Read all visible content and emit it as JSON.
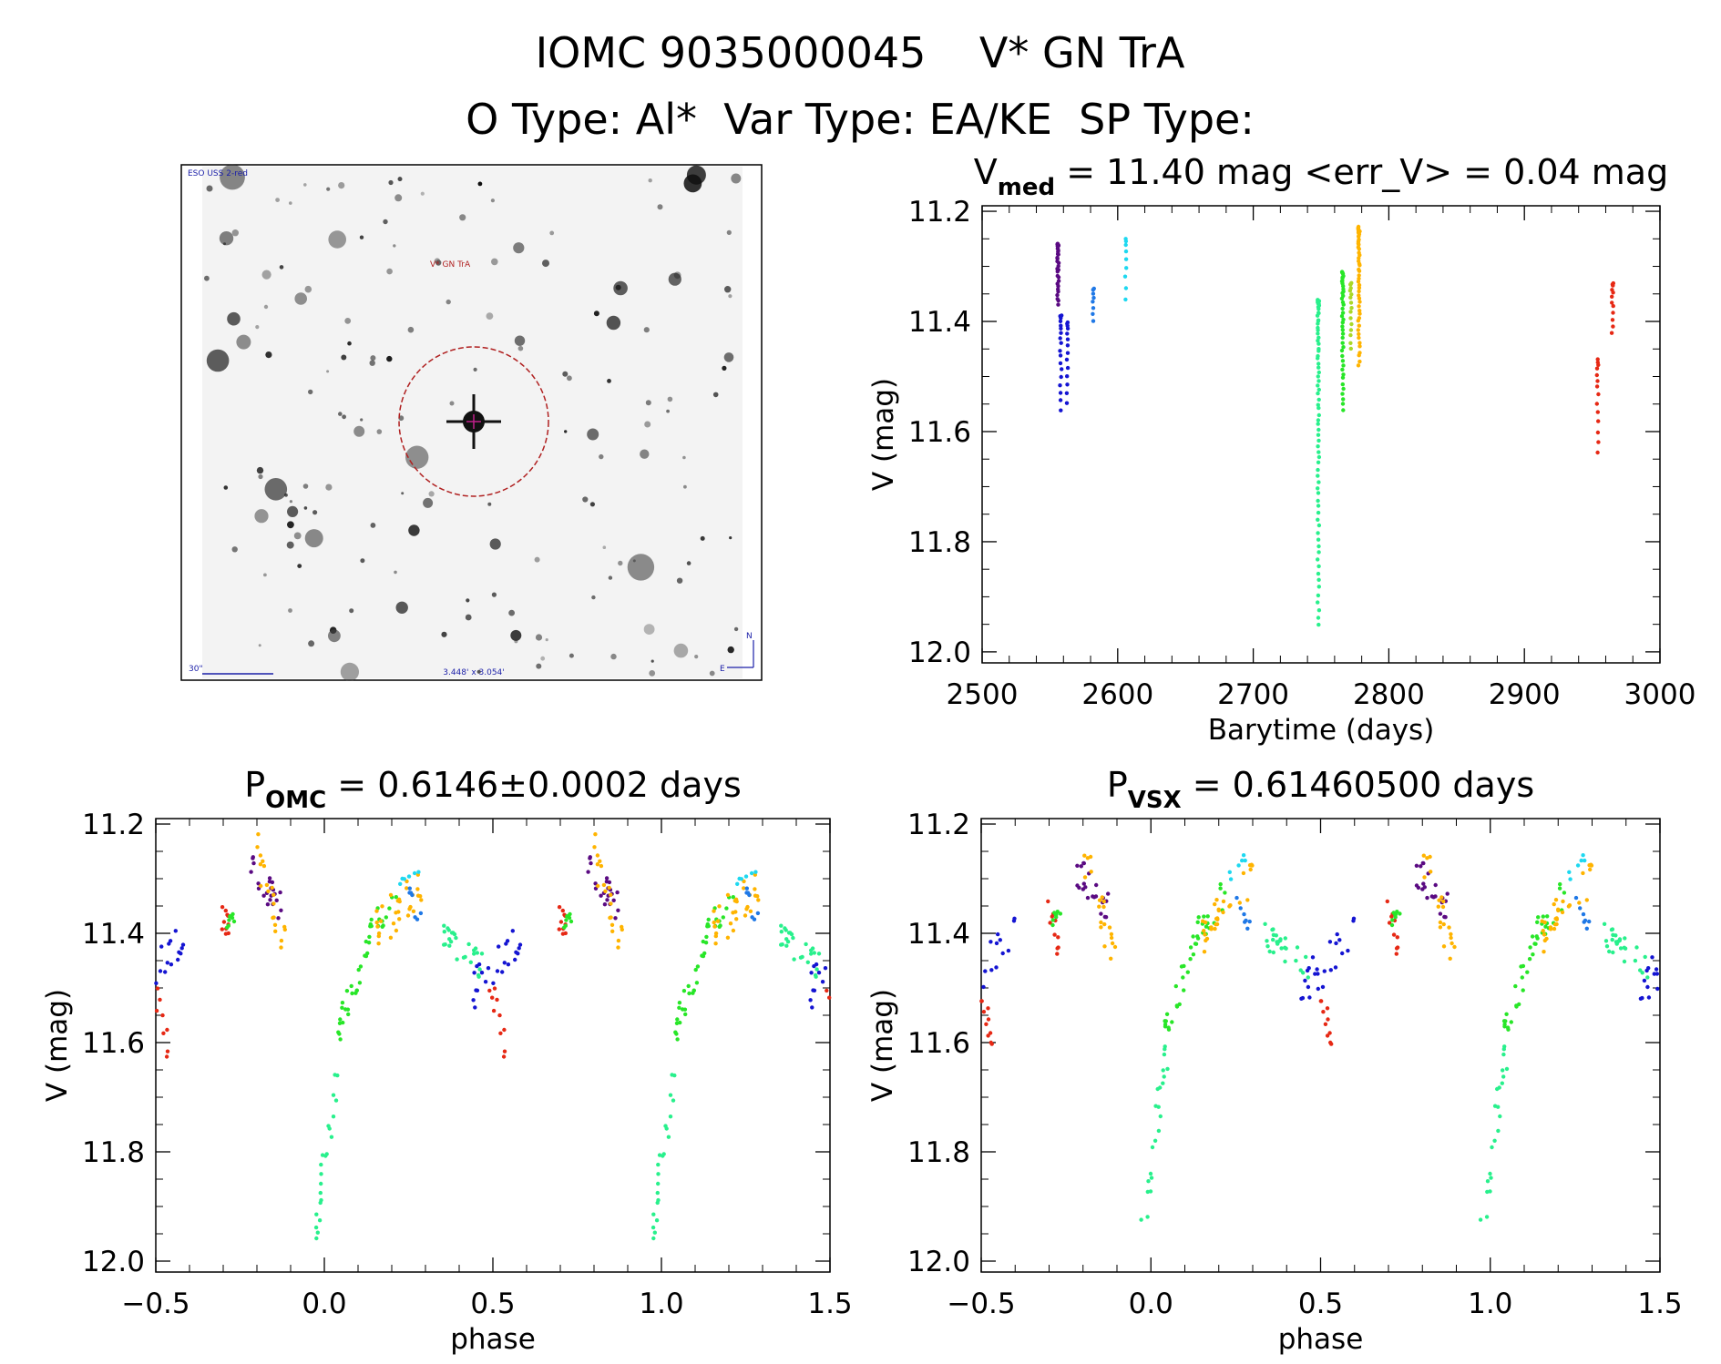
{
  "header": {
    "title": "IOMC 9035000045    V* GN TrA",
    "subtitle": "O Type: Al*  Var Type: EA/KE  SP Type:"
  },
  "finder": {
    "survey_label": "ESO USS 2-red",
    "object_label": "V* GN TrA",
    "scale_label": "30\"",
    "fov_label": "3.448' x 3.054'",
    "north_label": "N",
    "east_label": "E"
  },
  "colors": {
    "violet": "#5a0a82",
    "blue": "#1414d2",
    "azure": "#1f78e6",
    "cyan": "#1ed8f0",
    "spring": "#28f08c",
    "green": "#28e628",
    "lime": "#aad828",
    "orange": "#ffb400",
    "red": "#e62814"
  },
  "chart_data": [
    {
      "id": "lightcurve",
      "type": "scatter",
      "title_prefix": "V",
      "title_sub": "med",
      "title_rest": " = 11.40 mag <err_V> = 0.04 mag",
      "xlabel": "Barytime (days)",
      "ylabel": "V (mag)",
      "xlim": [
        2500,
        3000
      ],
      "ylim": [
        12.02,
        11.19
      ],
      "xticks": [
        2500,
        2600,
        2700,
        2800,
        2900,
        3000
      ],
      "xtick_labels": [
        "2500",
        "2600",
        "2700",
        "2800",
        "2900",
        "3000"
      ],
      "yticks": [
        11.2,
        11.4,
        11.6,
        11.8,
        12.0
      ],
      "ytick_labels": [
        "11.2",
        "11.4",
        "11.6",
        "11.8",
        "12.0"
      ],
      "groups": [
        {
          "color": "violet",
          "x": 2556,
          "ymin": 11.26,
          "ymax": 11.37,
          "n": 30
        },
        {
          "color": "blue",
          "x": 2558,
          "ymin": 11.39,
          "ymax": 11.56,
          "n": 18
        },
        {
          "color": "blue",
          "x": 2563,
          "ymin": 11.4,
          "ymax": 11.55,
          "n": 14
        },
        {
          "color": "azure",
          "x": 2582,
          "ymin": 11.34,
          "ymax": 11.4,
          "n": 8
        },
        {
          "color": "cyan",
          "x": 2606,
          "ymin": 11.25,
          "ymax": 11.36,
          "n": 9
        },
        {
          "color": "spring",
          "x": 2748,
          "ymin": 11.36,
          "ymax": 11.95,
          "n": 70
        },
        {
          "color": "green",
          "x": 2766,
          "ymin": 11.31,
          "ymax": 11.56,
          "n": 42
        },
        {
          "color": "lime",
          "x": 2772,
          "ymin": 11.33,
          "ymax": 11.45,
          "n": 16
        },
        {
          "color": "orange",
          "x": 2778,
          "ymin": 11.23,
          "ymax": 11.48,
          "n": 48
        },
        {
          "color": "red",
          "x": 2954,
          "ymin": 11.47,
          "ymax": 11.64,
          "n": 14
        },
        {
          "color": "red",
          "x": 2965,
          "ymin": 11.33,
          "ymax": 11.42,
          "n": 12
        }
      ]
    },
    {
      "id": "phase_omc",
      "type": "scatter",
      "title_prefix": "P",
      "title_sub": "OMC",
      "title_rest": " = 0.6146±0.0002 days",
      "xlabel": "phase",
      "ylabel": "V (mag)",
      "xlim": [
        -0.5,
        1.5
      ],
      "ylim": [
        12.02,
        11.19
      ],
      "xticks": [
        -0.5,
        0.0,
        0.5,
        1.0,
        1.5
      ],
      "xtick_labels": [
        "−0.5",
        "0.0",
        "0.5",
        "1.0",
        "1.5"
      ],
      "yticks": [
        11.2,
        11.4,
        11.6,
        11.8,
        12.0
      ],
      "ytick_labels": [
        "11.2",
        "11.4",
        "11.6",
        "11.8",
        "12.0"
      ],
      "period_days": 0.6146,
      "phase_shift": 0.0
    },
    {
      "id": "phase_vsx",
      "type": "scatter",
      "title_prefix": "P",
      "title_sub": "VSX",
      "title_rest": " = 0.61460500 days",
      "xlabel": "phase",
      "ylabel": "V (mag)",
      "xlim": [
        -0.5,
        1.5
      ],
      "ylim": [
        12.02,
        11.19
      ],
      "xticks": [
        -0.5,
        0.0,
        0.5,
        1.0,
        1.5
      ],
      "xtick_labels": [
        "−0.5",
        "0.0",
        "0.5",
        "1.0",
        "1.5"
      ],
      "yticks": [
        11.2,
        11.4,
        11.6,
        11.8,
        12.0
      ],
      "ytick_labels": [
        "11.2",
        "11.4",
        "11.6",
        "11.8",
        "12.0"
      ],
      "period_days": 0.614605,
      "phase_shift": 0.0
    }
  ],
  "phase_curve": {
    "segments": [
      {
        "color": "spring",
        "ph0": -0.03,
        "ph1": 0.05,
        "mag0": 11.96,
        "mag1": 11.6,
        "n": 22,
        "scatter": 0.05
      },
      {
        "color": "green",
        "ph0": 0.04,
        "ph1": 0.14,
        "mag0": 11.58,
        "mag1": 11.4,
        "n": 24,
        "scatter": 0.03
      },
      {
        "color": "green",
        "ph0": 0.12,
        "ph1": 0.22,
        "mag0": 11.42,
        "mag1": 11.32,
        "n": 16,
        "scatter": 0.03
      },
      {
        "color": "orange",
        "ph0": 0.15,
        "ph1": 0.3,
        "mag0": 11.4,
        "mag1": 11.3,
        "n": 30,
        "scatter": 0.04
      },
      {
        "color": "cyan",
        "ph0": 0.22,
        "ph1": 0.28,
        "mag0": 11.3,
        "mag1": 11.27,
        "n": 6,
        "scatter": 0.02
      },
      {
        "color": "azure",
        "ph0": 0.25,
        "ph1": 0.3,
        "mag0": 11.33,
        "mag1": 11.4,
        "n": 7,
        "scatter": 0.02
      },
      {
        "color": "spring",
        "ph0": 0.33,
        "ph1": 0.47,
        "mag0": 11.4,
        "mag1": 11.46,
        "n": 26,
        "scatter": 0.025
      },
      {
        "color": "blue",
        "ph0": 0.44,
        "ph1": 0.6,
        "mag0": 11.5,
        "mag1": 11.4,
        "n": 24,
        "scatter": 0.04
      },
      {
        "color": "red",
        "ph0": 0.49,
        "ph1": 0.54,
        "mag0": 11.48,
        "mag1": 11.62,
        "n": 10,
        "scatter": 0.03
      },
      {
        "color": "red",
        "ph0": 0.69,
        "ph1": 0.73,
        "mag0": 11.36,
        "mag1": 11.42,
        "n": 10,
        "scatter": 0.03
      },
      {
        "color": "green",
        "ph0": 0.71,
        "ph1": 0.74,
        "mag0": 11.38,
        "mag1": 11.36,
        "n": 8,
        "scatter": 0.015
      },
      {
        "color": "violet",
        "ph0": 0.78,
        "ph1": 0.88,
        "mag0": 11.28,
        "mag1": 11.36,
        "n": 22,
        "scatter": 0.03
      },
      {
        "color": "orange",
        "ph0": 0.8,
        "ph1": 0.9,
        "mag0": 11.25,
        "mag1": 11.46,
        "n": 20,
        "scatter": 0.04
      }
    ]
  }
}
